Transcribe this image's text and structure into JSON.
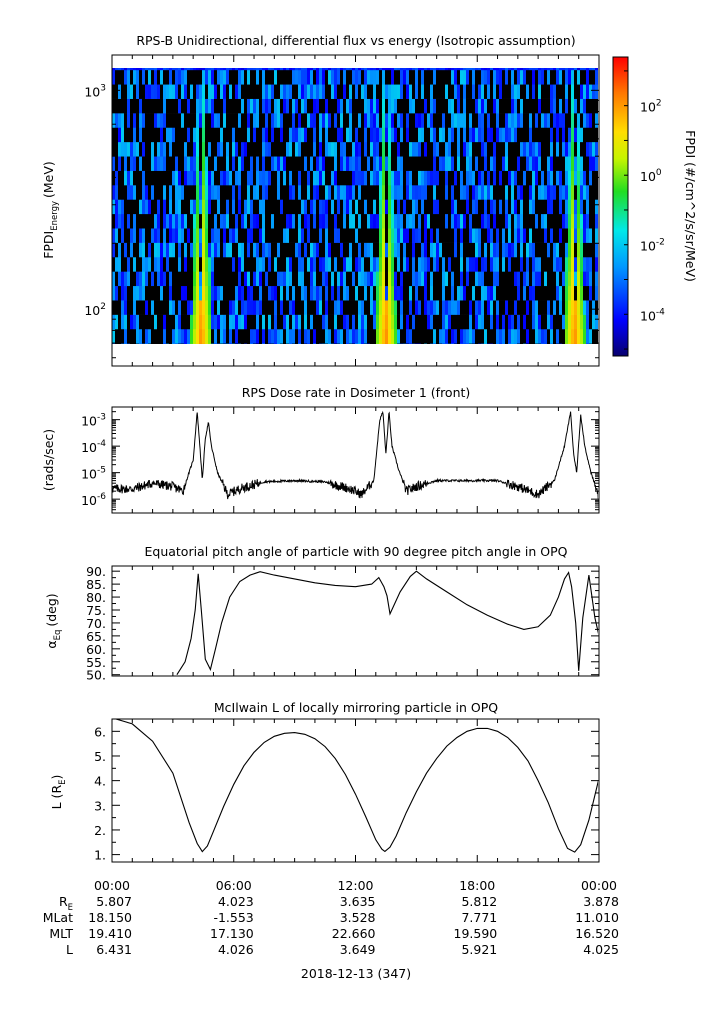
{
  "panels": {
    "spec": {
      "title": "RPS-B  Unidirectional, differential flux vs energy (Isotropic assumption)",
      "ylabel_main": "FPDI",
      "ylabel_sub": "Energy",
      "ylabel_unit": "(MeV)"
    },
    "dose": {
      "title": "RPS  Dose rate in Dosimeter 1 (front)",
      "ylabel": "(rads/sec)"
    },
    "pitch": {
      "title": "Equatorial pitch angle of particle with 90 degree pitch angle in OPQ",
      "ylabel_main": "α",
      "ylabel_sub": "Eq",
      "ylabel_unit": "(deg)"
    },
    "lshell": {
      "title": "McIlwain L of locally mirroring particle in OPQ",
      "ylabel_main": "L (R",
      "ylabel_sub": "E",
      "ylabel_unit": ")"
    }
  },
  "colorbar": {
    "label": "FPDI (#/cm^2/s/sr/MeV)",
    "ticks": [
      {
        "base": "10",
        "exp": "2",
        "v": 2
      },
      {
        "base": "10",
        "exp": "0",
        "v": 0
      },
      {
        "base": "10",
        "exp": "-2",
        "v": -2
      },
      {
        "base": "10",
        "exp": "-4",
        "v": -4
      }
    ]
  },
  "footer": {
    "date": "2018-12-13 (347)",
    "rows": [
      {
        "label": "R",
        "label_sub": "E",
        "values": [
          "5.807",
          "4.023",
          "3.635",
          "5.812",
          "3.878"
        ]
      },
      {
        "label": "MLat",
        "label_sub": "",
        "values": [
          "18.150",
          "-1.553",
          "3.528",
          "7.771",
          "11.010"
        ]
      },
      {
        "label": "MLT",
        "label_sub": "",
        "values": [
          "19.410",
          "17.130",
          "22.660",
          "19.590",
          "16.520"
        ]
      },
      {
        "label": "L",
        "label_sub": "",
        "values": [
          "6.431",
          "4.026",
          "3.649",
          "5.921",
          "4.025"
        ]
      }
    ]
  },
  "chart_data": [
    {
      "type": "heatmap",
      "title": "RPS-B  Unidirectional, differential flux vs energy (Isotropic assumption)",
      "xlabel": "",
      "ylabel": "FPDI Energy (MeV)",
      "x_range_hours": [
        0,
        24
      ],
      "y_scale": "log",
      "ylim": [
        55,
        1450
      ],
      "y_ticks": [
        {
          "base": "10",
          "exp": "2",
          "v": 100
        },
        {
          "base": "10",
          "exp": "3",
          "v": 1000
        }
      ],
      "z_scale": "log",
      "zlim_log10": [
        -5.2,
        3.4
      ],
      "colormap": "rainbow",
      "belt_crossings_hours": [
        4.4,
        13.5,
        22.8
      ]
    },
    {
      "type": "line",
      "title": "RPS  Dose rate in Dosimeter 1 (front)",
      "ylabel": "(rads/sec)",
      "y_scale": "log",
      "ylim": [
        3e-07,
        0.003
      ],
      "y_ticks": [
        {
          "base": "10",
          "exp": "-3",
          "v": 0.001
        },
        {
          "base": "10",
          "exp": "-4",
          "v": 0.0001
        },
        {
          "base": "10",
          "exp": "-5",
          "v": 1e-05
        },
        {
          "base": "10",
          "exp": "-6",
          "v": 1e-06
        }
      ],
      "x": [
        0,
        1,
        2,
        3,
        3.5,
        4.0,
        4.2,
        4.3,
        4.45,
        4.6,
        4.75,
        4.9,
        5.2,
        5.7,
        6.3,
        7.5,
        9,
        10.5,
        11.7,
        12.3,
        12.9,
        13.2,
        13.35,
        13.5,
        13.65,
        13.8,
        14.1,
        14.5,
        15.0,
        16,
        17.5,
        19,
        20,
        21,
        21.8,
        22.3,
        22.6,
        22.75,
        22.9,
        23.1,
        23.3,
        23.6,
        24
      ],
      "values": [
        2.5e-06,
        2.4e-06,
        4e-06,
        3e-06,
        2e-06,
        3e-05,
        0.002,
        0.0002,
        5e-06,
        0.0002,
        0.0008,
        0.0001,
        1e-05,
        1.5e-06,
        2.5e-06,
        4.5e-06,
        5e-06,
        4.5e-06,
        2.5e-06,
        1.5e-06,
        5e-06,
        0.001,
        0.002,
        5e-05,
        0.002,
        0.0001,
        1.5e-05,
        2e-06,
        3e-06,
        5e-06,
        5e-06,
        5e-06,
        3e-06,
        1.5e-06,
        5e-06,
        0.0001,
        0.002,
        5e-05,
        1e-05,
        0.0015,
        0.0001,
        1e-05,
        1.2e-06
      ]
    },
    {
      "type": "line",
      "title": "Equatorial pitch angle of particle with 90 degree pitch angle in OPQ",
      "ylabel": "αEq (deg)",
      "ylim": [
        49.5,
        92
      ],
      "y_ticks": [
        50,
        55,
        60,
        65,
        70,
        75,
        80,
        85,
        90
      ],
      "x": [
        3.2,
        3.6,
        3.9,
        4.1,
        4.25,
        4.4,
        4.6,
        4.85,
        5.1,
        5.4,
        5.8,
        6.3,
        6.8,
        7.3,
        8,
        9,
        10,
        11,
        12,
        12.8,
        13.15,
        13.4,
        13.55,
        13.7,
        14.2,
        14.7,
        15,
        15.5,
        16.5,
        17.5,
        18.5,
        19.5,
        20.3,
        21,
        21.6,
        22.0,
        22.3,
        22.5,
        22.65,
        22.85,
        23.0,
        23.2,
        23.5,
        23.8,
        24
      ],
      "values": [
        50,
        55,
        64,
        75,
        89,
        75,
        56,
        52,
        60,
        70,
        80,
        86,
        88.5,
        89.8,
        88.5,
        87,
        85.5,
        84.5,
        84,
        85,
        87.5,
        84,
        80.5,
        73.5,
        82,
        88,
        90,
        87,
        82,
        77,
        73,
        69.5,
        67.5,
        68.5,
        73,
        80,
        87,
        89.5,
        84,
        70,
        51.5,
        72,
        88.5,
        72,
        65
      ]
    },
    {
      "type": "line",
      "title": "McIlwain L of locally mirroring particle in OPQ",
      "ylabel": "L (RE)",
      "ylim": [
        0.7,
        6.5
      ],
      "y_ticks": [
        1,
        2,
        3,
        4,
        5,
        6
      ],
      "y_tick_labels": [
        "1.",
        "2.",
        "3.",
        "4.",
        "5.",
        "6."
      ],
      "x": [
        0,
        1,
        2,
        3,
        3.8,
        4.2,
        4.45,
        4.7,
        5,
        5.5,
        6,
        6.5,
        7,
        7.5,
        8,
        8.5,
        9,
        9.5,
        10,
        10.5,
        11,
        11.5,
        12,
        12.5,
        13,
        13.3,
        13.45,
        13.7,
        14,
        14.5,
        15,
        15.5,
        16,
        16.5,
        17,
        17.5,
        18,
        18.5,
        19,
        19.5,
        20,
        20.5,
        21,
        21.5,
        22,
        22.45,
        22.8,
        23.1,
        23.5,
        24
      ],
      "values": [
        6.55,
        6.3,
        5.6,
        4.3,
        2.3,
        1.45,
        1.12,
        1.35,
        1.95,
        2.95,
        3.85,
        4.6,
        5.15,
        5.55,
        5.8,
        5.92,
        5.95,
        5.88,
        5.7,
        5.38,
        4.9,
        4.25,
        3.45,
        2.55,
        1.6,
        1.22,
        1.13,
        1.3,
        1.75,
        2.7,
        3.55,
        4.3,
        4.9,
        5.4,
        5.75,
        6.0,
        6.12,
        6.12,
        6.0,
        5.75,
        5.35,
        4.8,
        4.0,
        3.1,
        2.05,
        1.25,
        1.1,
        1.4,
        2.4,
        4.1
      ],
      "x_tick_labels": [
        "00:00",
        "06:00",
        "12:00",
        "18:00",
        "00:00"
      ],
      "x_ticks_hours": [
        0,
        6,
        12,
        18,
        24
      ],
      "xlabel": "2018-12-13 (347)"
    }
  ]
}
